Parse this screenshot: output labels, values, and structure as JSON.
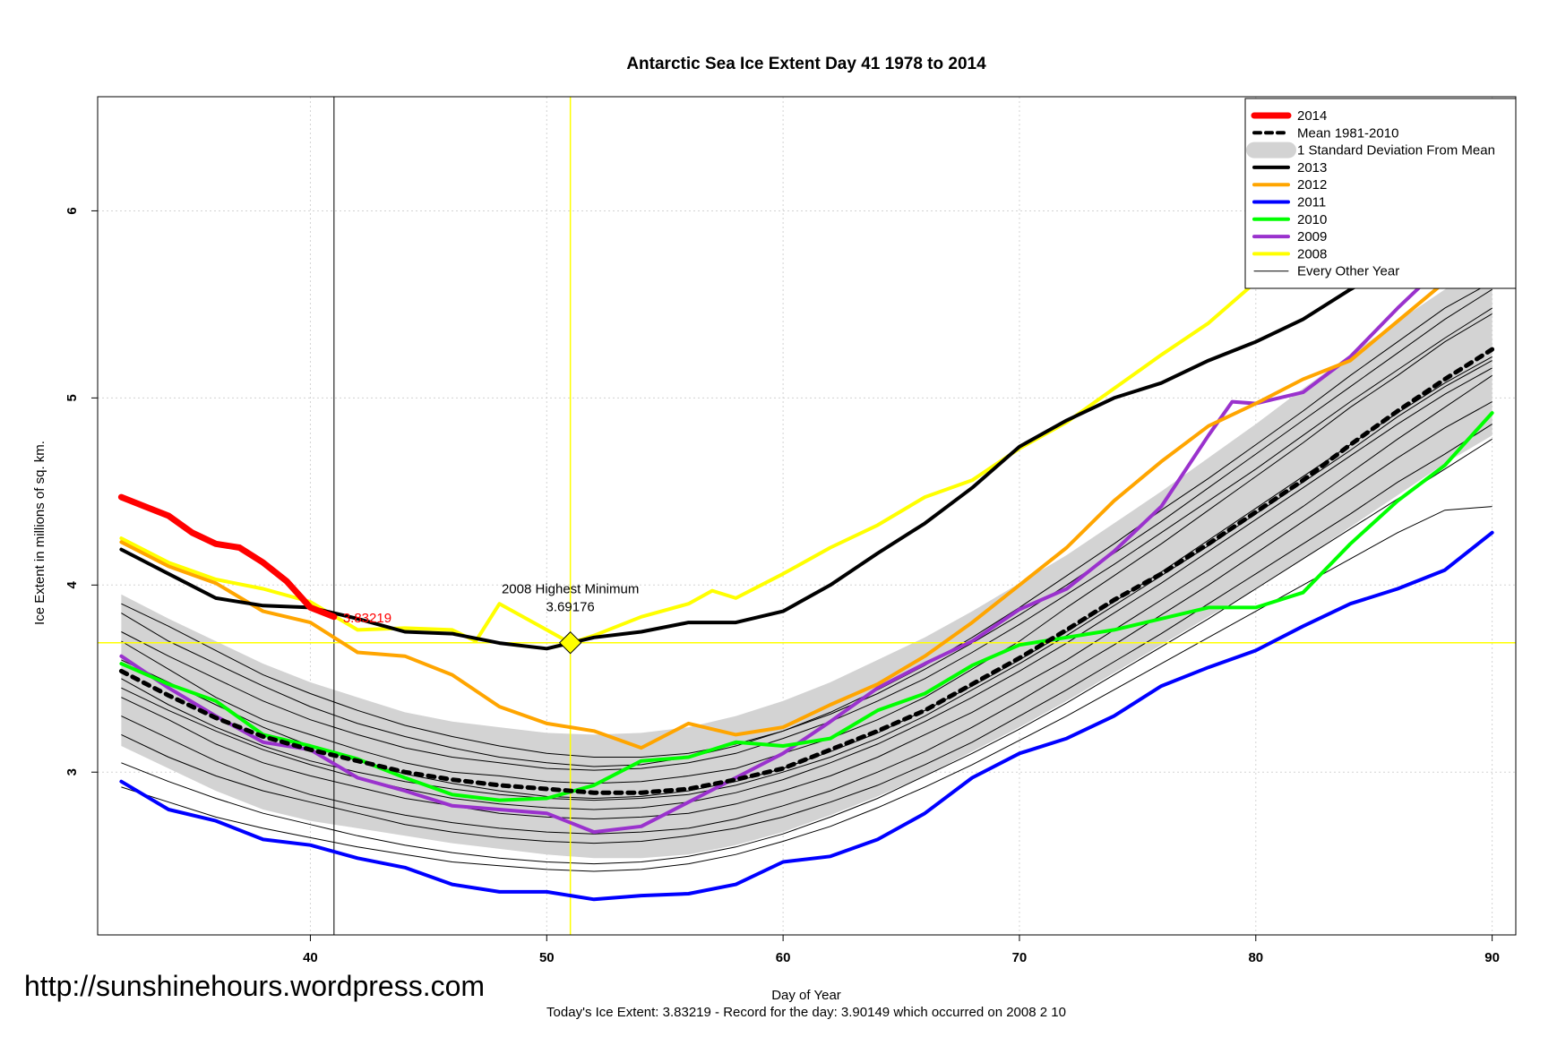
{
  "chart_data": {
    "type": "line",
    "title": "Antarctic Sea Ice Extent Day 41 1978 to 2014",
    "xlabel": "Day of Year",
    "ylabel": "Ice Extent in millions of sq. km.",
    "subtitle": "Today's Ice Extent: 3.83219  - Record for the day: 3.90149 which occurred on 2008 2 10",
    "xlim": [
      31,
      91
    ],
    "ylim": [
      2.13,
      6.61
    ],
    "x_ticks": [
      "40",
      "50",
      "60",
      "70",
      "80",
      "90"
    ],
    "y_ticks": [
      "3",
      "4",
      "5",
      "6"
    ],
    "grid": true,
    "legend_position": "top-right",
    "legend": [
      "2014",
      "Mean 1981-2010",
      "1 Standard Deviation From Mean",
      "2013",
      "2012",
      "2011",
      "2010",
      "2009",
      "2008",
      "Every Other Year"
    ],
    "annotations": {
      "today_value_label": "3.83219",
      "highest_minimum_title": "2008 Highest Minimum",
      "highest_minimum_value": "3.69176",
      "highest_minimum_point": {
        "x": 51,
        "y": 3.69176
      },
      "vline_day": 41,
      "vline_yellow_day": 51,
      "hline_yellow_value": 3.69176
    },
    "series": [
      {
        "name": "2014",
        "color": "#ff0000",
        "width": 7,
        "x": [
          32,
          33,
          34,
          35,
          36,
          37,
          38,
          39,
          40,
          41
        ],
        "y": [
          4.47,
          4.42,
          4.37,
          4.28,
          4.22,
          4.2,
          4.12,
          4.02,
          3.88,
          3.83
        ]
      },
      {
        "name": "2013",
        "color": "#000000",
        "width": 4,
        "x": [
          32,
          34,
          36,
          38,
          40,
          42,
          44,
          46,
          48,
          50,
          52,
          54,
          56,
          58,
          60,
          62,
          64,
          66,
          68,
          70,
          72,
          74,
          76,
          78,
          80,
          82,
          84,
          86,
          88,
          90
        ],
        "y": [
          4.19,
          4.06,
          3.93,
          3.89,
          3.88,
          3.82,
          3.75,
          3.74,
          3.69,
          3.66,
          3.72,
          3.75,
          3.8,
          3.8,
          3.86,
          4.0,
          4.17,
          4.33,
          4.52,
          4.74,
          4.88,
          5.0,
          5.08,
          5.2,
          5.3,
          5.42,
          5.58,
          5.72,
          5.9,
          6.05
        ]
      },
      {
        "name": "2012",
        "color": "#ffa500",
        "width": 4,
        "x": [
          32,
          34,
          36,
          38,
          40,
          41,
          42,
          44,
          46,
          48,
          50,
          52,
          54,
          56,
          58,
          60,
          62,
          64,
          66,
          68,
          70,
          72,
          74,
          76,
          78,
          80,
          82,
          84,
          86,
          88,
          90
        ],
        "y": [
          4.23,
          4.1,
          4.01,
          3.86,
          3.8,
          3.72,
          3.64,
          3.62,
          3.52,
          3.35,
          3.26,
          3.22,
          3.13,
          3.26,
          3.2,
          3.24,
          3.36,
          3.47,
          3.62,
          3.8,
          4.0,
          4.2,
          4.45,
          4.66,
          4.85,
          4.97,
          5.1,
          5.2,
          5.41,
          5.62,
          5.72
        ]
      },
      {
        "name": "2011",
        "color": "#0000ff",
        "width": 4,
        "x": [
          32,
          34,
          36,
          38,
          40,
          42,
          44,
          46,
          48,
          50,
          52,
          54,
          56,
          58,
          60,
          62,
          64,
          66,
          68,
          70,
          72,
          74,
          76,
          78,
          80,
          82,
          84,
          86,
          88,
          90
        ],
        "y": [
          2.95,
          2.8,
          2.74,
          2.64,
          2.61,
          2.54,
          2.49,
          2.4,
          2.36,
          2.36,
          2.32,
          2.34,
          2.35,
          2.4,
          2.52,
          2.55,
          2.64,
          2.78,
          2.97,
          3.1,
          3.18,
          3.3,
          3.46,
          3.56,
          3.65,
          3.78,
          3.9,
          3.98,
          4.08,
          4.28
        ]
      },
      {
        "name": "2010",
        "color": "#00ff00",
        "width": 4,
        "x": [
          32,
          34,
          36,
          38,
          40,
          42,
          44,
          46,
          48,
          50,
          52,
          54,
          56,
          58,
          60,
          62,
          64,
          66,
          68,
          70,
          72,
          74,
          76,
          78,
          80,
          82,
          84,
          86,
          88,
          90
        ],
        "y": [
          3.58,
          3.47,
          3.38,
          3.2,
          3.14,
          3.07,
          2.97,
          2.88,
          2.85,
          2.86,
          2.93,
          3.06,
          3.08,
          3.16,
          3.14,
          3.18,
          3.33,
          3.42,
          3.57,
          3.68,
          3.72,
          3.76,
          3.82,
          3.88,
          3.88,
          3.96,
          4.22,
          4.45,
          4.64,
          4.92
        ]
      },
      {
        "name": "2009",
        "color": "#9a32cd",
        "width": 4,
        "x": [
          32,
          34,
          36,
          38,
          40,
          42,
          44,
          46,
          48,
          50,
          52,
          54,
          56,
          58,
          60,
          62,
          64,
          66,
          68,
          70,
          72,
          74,
          76,
          78,
          79,
          80,
          82,
          84,
          86,
          88,
          90
        ],
        "y": [
          3.62,
          3.45,
          3.3,
          3.16,
          3.12,
          2.97,
          2.9,
          2.82,
          2.8,
          2.78,
          2.68,
          2.71,
          2.84,
          2.97,
          3.1,
          3.27,
          3.45,
          3.58,
          3.7,
          3.87,
          3.98,
          4.18,
          4.42,
          4.8,
          4.98,
          4.97,
          5.03,
          5.22,
          5.48,
          5.72,
          5.98
        ]
      },
      {
        "name": "2008",
        "color": "#ffff00",
        "width": 4,
        "x": [
          32,
          34,
          36,
          38,
          40,
          42,
          44,
          46,
          47,
          48,
          50,
          51,
          52,
          54,
          56,
          57,
          58,
          60,
          62,
          64,
          66,
          68,
          70,
          72,
          74,
          76,
          78,
          80,
          82,
          84,
          86,
          88,
          90
        ],
        "y": [
          4.25,
          4.12,
          4.03,
          3.98,
          3.91,
          3.76,
          3.77,
          3.76,
          3.7,
          3.9,
          3.76,
          3.69,
          3.73,
          3.83,
          3.9,
          3.97,
          3.93,
          4.06,
          4.2,
          4.32,
          4.47,
          4.56,
          4.73,
          4.87,
          5.05,
          5.23,
          5.4,
          5.62,
          5.93,
          6.09,
          6.15,
          6.22,
          6.44
        ]
      },
      {
        "name": "Mean 1981-2010",
        "color": "#000000",
        "width": 5,
        "dashed": true,
        "x": [
          32,
          34,
          36,
          38,
          40,
          42,
          44,
          46,
          48,
          50,
          52,
          54,
          56,
          58,
          60,
          62,
          64,
          66,
          68,
          70,
          72,
          74,
          76,
          78,
          80,
          82,
          84,
          86,
          88,
          90
        ],
        "y": [
          3.54,
          3.41,
          3.29,
          3.19,
          3.12,
          3.06,
          3.0,
          2.96,
          2.93,
          2.91,
          2.89,
          2.89,
          2.91,
          2.96,
          3.02,
          3.12,
          3.22,
          3.33,
          3.47,
          3.61,
          3.76,
          3.92,
          4.06,
          4.22,
          4.39,
          4.56,
          4.75,
          4.93,
          5.1,
          5.26
        ]
      }
    ],
    "std_band": {
      "x": [
        32,
        34,
        36,
        38,
        40,
        42,
        44,
        46,
        48,
        50,
        52,
        54,
        56,
        58,
        60,
        62,
        64,
        66,
        68,
        70,
        72,
        74,
        76,
        78,
        80,
        82,
        84,
        86,
        88,
        90
      ],
      "upper": [
        3.95,
        3.82,
        3.7,
        3.58,
        3.48,
        3.4,
        3.32,
        3.27,
        3.24,
        3.21,
        3.2,
        3.21,
        3.24,
        3.3,
        3.38,
        3.48,
        3.6,
        3.72,
        3.86,
        4.01,
        4.16,
        4.33,
        4.5,
        4.68,
        4.86,
        5.05,
        5.23,
        5.41,
        5.58,
        5.74
      ],
      "lower": [
        3.14,
        3.02,
        2.9,
        2.8,
        2.74,
        2.7,
        2.66,
        2.62,
        2.59,
        2.56,
        2.54,
        2.54,
        2.56,
        2.61,
        2.68,
        2.77,
        2.87,
        2.98,
        3.11,
        3.24,
        3.38,
        3.53,
        3.68,
        3.83,
        3.98,
        4.14,
        4.31,
        4.48,
        4.65,
        4.8
      ]
    },
    "other_years": [
      [
        3.7,
        3.55,
        3.4,
        3.28,
        3.2,
        3.12,
        3.05,
        3.0,
        2.98,
        2.95,
        2.94,
        2.95,
        2.98,
        3.02,
        3.1,
        3.18,
        3.28,
        3.4,
        3.55,
        3.7,
        3.88,
        4.05,
        4.22,
        4.4,
        4.58,
        4.76,
        4.95,
        5.12,
        5.3,
        5.45
      ],
      [
        3.4,
        3.28,
        3.15,
        3.05,
        2.98,
        2.92,
        2.86,
        2.82,
        2.78,
        2.76,
        2.75,
        2.76,
        2.78,
        2.83,
        2.9,
        2.98,
        3.08,
        3.2,
        3.32,
        3.46,
        3.6,
        3.76,
        3.92,
        4.08,
        4.25,
        4.42,
        4.6,
        4.78,
        4.95,
        5.12
      ],
      [
        3.85,
        3.7,
        3.58,
        3.46,
        3.35,
        3.26,
        3.19,
        3.13,
        3.08,
        3.05,
        3.03,
        3.04,
        3.08,
        3.14,
        3.22,
        3.32,
        3.44,
        3.57,
        3.72,
        3.88,
        4.05,
        4.22,
        4.4,
        4.57,
        4.75,
        4.93,
        5.12,
        5.3,
        5.48,
        5.62
      ],
      [
        3.2,
        3.08,
        2.98,
        2.9,
        2.84,
        2.78,
        2.72,
        2.68,
        2.65,
        2.63,
        2.62,
        2.63,
        2.66,
        2.7,
        2.76,
        2.84,
        2.93,
        3.04,
        3.16,
        3.3,
        3.44,
        3.59,
        3.74,
        3.9,
        4.06,
        4.22,
        4.38,
        4.55,
        4.7,
        4.86
      ],
      [
        3.6,
        3.48,
        3.36,
        3.24,
        3.14,
        3.06,
        2.99,
        2.94,
        2.9,
        2.87,
        2.86,
        2.87,
        2.9,
        2.95,
        3.02,
        3.11,
        3.21,
        3.33,
        3.46,
        3.6,
        3.75,
        3.91,
        4.07,
        4.24,
        4.41,
        4.58,
        4.75,
        4.92,
        5.08,
        5.22
      ],
      [
        3.5,
        3.36,
        3.24,
        3.14,
        3.06,
        3.0,
        2.95,
        2.91,
        2.88,
        2.86,
        2.85,
        2.86,
        2.88,
        2.93,
        3.0,
        3.08,
        3.18,
        3.3,
        3.44,
        3.58,
        3.73,
        3.89,
        4.05,
        4.21,
        4.38,
        4.55,
        4.72,
        4.9,
        5.06,
        5.2
      ],
      [
        3.3,
        3.18,
        3.06,
        2.96,
        2.88,
        2.82,
        2.77,
        2.73,
        2.7,
        2.68,
        2.67,
        2.68,
        2.7,
        2.75,
        2.82,
        2.9,
        3.0,
        3.11,
        3.24,
        3.38,
        3.53,
        3.68,
        3.84,
        4.0,
        4.17,
        4.34,
        4.51,
        4.68,
        4.84,
        4.98
      ],
      [
        3.75,
        3.62,
        3.5,
        3.38,
        3.28,
        3.2,
        3.13,
        3.08,
        3.05,
        3.02,
        3.01,
        3.02,
        3.05,
        3.1,
        3.18,
        3.27,
        3.38,
        3.5,
        3.64,
        3.79,
        3.95,
        4.11,
        4.28,
        4.45,
        4.62,
        4.8,
        4.98,
        5.15,
        5.32,
        5.48
      ],
      [
        3.05,
        2.95,
        2.86,
        2.78,
        2.72,
        2.66,
        2.61,
        2.57,
        2.54,
        2.52,
        2.51,
        2.52,
        2.55,
        2.6,
        2.67,
        2.76,
        2.86,
        2.98,
        3.1,
        3.23,
        3.37,
        3.52,
        3.67,
        3.82,
        3.98,
        4.14,
        4.3,
        4.46,
        4.62,
        4.78
      ],
      [
        3.45,
        3.33,
        3.22,
        3.12,
        3.04,
        2.97,
        2.91,
        2.86,
        2.83,
        2.81,
        2.8,
        2.81,
        2.84,
        2.89,
        2.96,
        3.05,
        3.15,
        3.27,
        3.4,
        3.54,
        3.69,
        3.85,
        4.01,
        4.18,
        4.35,
        4.52,
        4.69,
        4.86,
        5.02,
        5.16
      ],
      [
        3.9,
        3.78,
        3.65,
        3.52,
        3.42,
        3.33,
        3.25,
        3.19,
        3.14,
        3.1,
        3.08,
        3.08,
        3.1,
        3.15,
        3.22,
        3.31,
        3.42,
        3.55,
        3.69,
        3.84,
        4.0,
        4.17,
        4.34,
        4.52,
        4.7,
        4.88,
        5.06,
        5.24,
        5.42,
        5.58
      ],
      [
        2.92,
        2.84,
        2.76,
        2.7,
        2.65,
        2.6,
        2.56,
        2.52,
        2.5,
        2.48,
        2.47,
        2.48,
        2.51,
        2.56,
        2.63,
        2.71,
        2.81,
        2.92,
        3.04,
        3.17,
        3.3,
        3.44,
        3.58,
        3.72,
        3.86,
        4.0,
        4.14,
        4.28,
        4.4,
        4.42
      ]
    ]
  },
  "watermark": "http://sunshinehours.wordpress.com"
}
